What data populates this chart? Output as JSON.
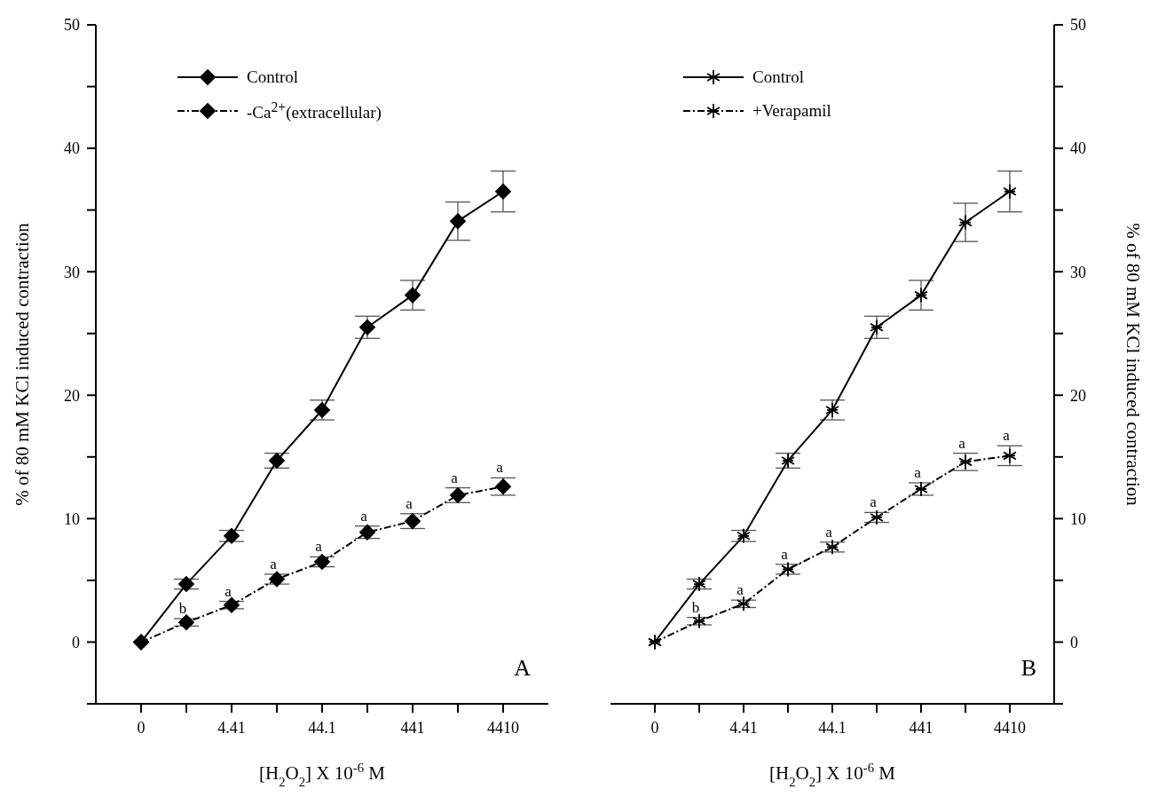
{
  "chart_data": [
    {
      "type": "line",
      "xlabel": "[H$_{2}$O$_{2}$] X 10$^{-6}$ M",
      "ylabel": "% of 80 mM KCl induced contraction",
      "categories": [
        "0",
        null,
        "4.41",
        null,
        "44.1",
        null,
        "441",
        null,
        "4410"
      ],
      "series": [
        {
          "name": "Control",
          "color": "#000000",
          "marker": "diamond",
          "line_style": "solid",
          "values": [
            0,
            4.7,
            8.6,
            14.7,
            18.8,
            25.5,
            28.1,
            34.1,
            36.5
          ],
          "errors": [
            null,
            0.4,
            0.45,
            0.6,
            0.8,
            0.9,
            1.2,
            1.55,
            1.65
          ]
        },
        {
          "name": "-Ca$^{2+}$(extracellular)",
          "color": "#000000",
          "marker": "diamond",
          "line_style": "dashed",
          "values": [
            0,
            1.6,
            3.0,
            5.1,
            6.5,
            8.9,
            9.8,
            11.9,
            12.6
          ],
          "errors": [
            null,
            0.3,
            0.3,
            0.4,
            0.4,
            0.5,
            0.6,
            0.6,
            0.7
          ],
          "value_labels": [
            null,
            "b",
            "a",
            "a",
            "a",
            "a",
            "a",
            "a",
            "a"
          ]
        }
      ],
      "ylim": [
        -5,
        50
      ],
      "yticks": [
        {
          "value": -5,
          "label": null
        },
        0,
        {
          "value": 5,
          "label": null
        },
        10,
        {
          "value": 15,
          "label": null
        },
        20,
        {
          "value": 25,
          "label": null
        },
        30,
        {
          "value": 35,
          "label": null
        },
        40,
        {
          "value": 45,
          "label": null
        },
        50
      ],
      "annotations": [
        "A"
      ],
      "legend": "top left",
      "grid": false
    },
    {
      "type": "line",
      "xlabel": "[H$_{2}$O$_{2}$] X 10$^{-6}$ M",
      "y2label": "% of 80 mM KCl induced contraction",
      "categories": [
        "0",
        null,
        "4.41",
        null,
        "44.1",
        null,
        "441",
        null,
        "4410"
      ],
      "series": [
        {
          "name": "Control",
          "color": "#000000",
          "marker": "cross",
          "line_style": "solid",
          "axis": "y2",
          "values": [
            0,
            4.7,
            8.6,
            14.7,
            18.8,
            25.5,
            28.1,
            34.0,
            36.5
          ],
          "errors": [
            null,
            0.4,
            0.45,
            0.6,
            0.8,
            0.9,
            1.2,
            1.55,
            1.65
          ]
        },
        {
          "name": "+Verapamil",
          "color": "#000000",
          "marker": "cross",
          "line_style": "dashed",
          "axis": "y2",
          "values": [
            0,
            1.7,
            3.1,
            5.9,
            7.7,
            10.1,
            12.4,
            14.6,
            15.1
          ],
          "errors": [
            null,
            0.3,
            0.3,
            0.4,
            0.4,
            0.4,
            0.5,
            0.7,
            0.8
          ],
          "value_labels": [
            null,
            "b",
            "a",
            "a",
            "a",
            "a",
            "a",
            "a",
            "a"
          ]
        }
      ],
      "y2lim": [
        -5,
        50
      ],
      "y2ticks": [
        {
          "value": -5,
          "label": null
        },
        0,
        {
          "value": 5,
          "label": null
        },
        10,
        {
          "value": 15,
          "label": null
        },
        20,
        {
          "value": 25,
          "label": null
        },
        30,
        {
          "value": 35,
          "label": null
        },
        40,
        {
          "value": 45,
          "label": null
        },
        50
      ],
      "annotations": [
        "B"
      ],
      "legend": "top left",
      "grid": false
    }
  ]
}
